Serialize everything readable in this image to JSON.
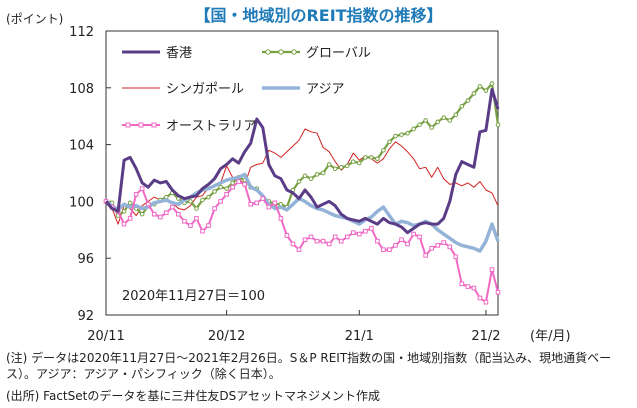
{
  "header": {
    "title": "【国・地域別のREIT指数の推移】",
    "y_unit": "(ポイント)",
    "x_unit": "(年/月)"
  },
  "notes": {
    "note1": "(注) データは2020年11月27日～2021年2月26日。S＆P REIT指数の国・地域別指数（配当込み、現地通貨ベース）。アジア：アジア・パシフィック（除く日本）。",
    "source": "(出所) FactSetのデータを基に三井住友DSアセットマネジメント作成"
  },
  "chart_data": {
    "type": "line",
    "title": "【国・地域別のREIT指数の推移】",
    "ylabel": "(ポイント)",
    "xlabel": "(年/月)",
    "ylim": [
      92,
      112
    ],
    "yticks": [
      92,
      96,
      100,
      104,
      108,
      112
    ],
    "xticks": [
      {
        "label": "20/11",
        "index": 0
      },
      {
        "label": "20/12",
        "index": 20
      },
      {
        "label": "21/1",
        "index": 42
      },
      {
        "label": "21/2",
        "index": 63
      }
    ],
    "annotation": "2020年11月27日＝100",
    "colors": {
      "hongkong": "#5b3d87",
      "global": "#77a043",
      "singapore": "#d42020",
      "asia": "#93b3d8",
      "australia": "#f069c5"
    },
    "series": [
      {
        "name": "香港",
        "key": "hongkong",
        "values": [
          100,
          99.5,
          99.3,
          102.9,
          103.1,
          102.3,
          101.3,
          101.0,
          101.5,
          101.3,
          101.4,
          100.8,
          100.4,
          100.2,
          100.3,
          100.4,
          100.9,
          101.2,
          101.6,
          102.3,
          102.6,
          103.0,
          102.7,
          103.5,
          104.1,
          105.8,
          105.2,
          102.6,
          101.8,
          101.6,
          100.8,
          100.6,
          100.2,
          100.8,
          100.3,
          99.6,
          99.8,
          100.0,
          99.7,
          99.1,
          98.8,
          98.7,
          98.6,
          98.8,
          98.6,
          98.4,
          98.8,
          98.5,
          98.4,
          98.2,
          97.8,
          98.1,
          98.4,
          98.5,
          98.4,
          98.4,
          98.8,
          100.0,
          101.9,
          102.8,
          102.6,
          102.4,
          104.9,
          105.0,
          107.9,
          106.5
        ]
      },
      {
        "name": "グローバル",
        "key": "global",
        "values": [
          100,
          99.9,
          99.0,
          99.3,
          99.9,
          99.5,
          99.1,
          99.7,
          99.8,
          100.1,
          100.3,
          100.6,
          100.2,
          99.9,
          100.0,
          99.5,
          100.1,
          100.3,
          100.7,
          101.0,
          100.9,
          101.3,
          101.7,
          101.5,
          101.0,
          100.9,
          100.3,
          100.0,
          99.8,
          99.8,
          99.6,
          100.8,
          101.4,
          101.8,
          101.6,
          101.9,
          102.0,
          102.6,
          102.3,
          102.4,
          102.5,
          102.8,
          102.7,
          103.1,
          103.1,
          103.0,
          103.6,
          104.2,
          104.6,
          104.7,
          104.8,
          105.1,
          105.4,
          105.7,
          105.2,
          105.6,
          105.9,
          105.7,
          106.1,
          106.7,
          107.1,
          107.6,
          108.1,
          107.8,
          108.3,
          105.4
        ]
      },
      {
        "name": "シンガポール",
        "key": "singapore",
        "values": [
          100,
          99.5,
          98.4,
          99.7,
          99.5,
          99.0,
          99.7,
          100.0,
          100.3,
          100.1,
          100.1,
          99.9,
          99.5,
          99.4,
          99.7,
          100.3,
          100.4,
          101.0,
          101.1,
          101.3,
          102.5,
          101.7,
          101.6,
          101.2,
          102.4,
          102.6,
          102.7,
          103.6,
          103.4,
          103.1,
          103.5,
          103.9,
          104.3,
          105.1,
          104.9,
          104.8,
          103.8,
          103.5,
          102.8,
          102.2,
          102.6,
          103.4,
          102.9,
          103.2,
          103.0,
          102.7,
          103.0,
          103.7,
          104.2,
          103.9,
          103.5,
          103.0,
          102.3,
          102.4,
          101.7,
          102.4,
          101.6,
          101.2,
          101.3,
          101.1,
          101.3,
          101.0,
          101.4,
          100.8,
          100.6,
          99.7
        ]
      },
      {
        "name": "アジア",
        "key": "asia",
        "values": [
          100,
          99.7,
          99.4,
          99.8,
          99.6,
          99.7,
          99.5,
          99.6,
          99.9,
          100.0,
          100.1,
          99.9,
          99.8,
          100.1,
          100.3,
          100.6,
          100.8,
          100.9,
          101.1,
          101.3,
          101.5,
          101.6,
          101.7,
          101.9,
          101.0,
          100.8,
          100.4,
          99.8,
          99.5,
          99.6,
          99.4,
          99.8,
          100.2,
          100.0,
          99.7,
          99.5,
          99.4,
          99.2,
          99.0,
          98.9,
          98.8,
          98.6,
          98.4,
          98.7,
          98.9,
          99.3,
          99.6,
          99.0,
          98.4,
          98.6,
          98.5,
          98.3,
          98.4,
          98.6,
          98.4,
          98.0,
          97.7,
          97.4,
          97.1,
          96.9,
          96.8,
          96.7,
          96.5,
          97.2,
          98.4,
          97.2
        ]
      },
      {
        "name": "オーストラリア",
        "key": "australia",
        "values": [
          100,
          99.6,
          99.3,
          98.4,
          98.8,
          100.5,
          100.9,
          99.8,
          99.1,
          98.9,
          99.2,
          99.6,
          99.1,
          98.6,
          98.3,
          98.8,
          97.9,
          98.3,
          99.5,
          100.0,
          100.5,
          101.0,
          101.4,
          101.2,
          99.8,
          99.9,
          100.2,
          99.6,
          99.9,
          98.8,
          97.6,
          97.0,
          96.6,
          97.3,
          97.5,
          97.2,
          97.2,
          97.0,
          97.5,
          97.2,
          97.5,
          97.8,
          97.7,
          97.9,
          98.1,
          97.2,
          96.6,
          96.6,
          96.9,
          97.3,
          97.0,
          97.7,
          97.5,
          96.2,
          96.7,
          96.9,
          97.1,
          96.8,
          96.1,
          94.2,
          94.0,
          93.9,
          93.2,
          92.9,
          95.2,
          93.6
        ]
      }
    ]
  }
}
